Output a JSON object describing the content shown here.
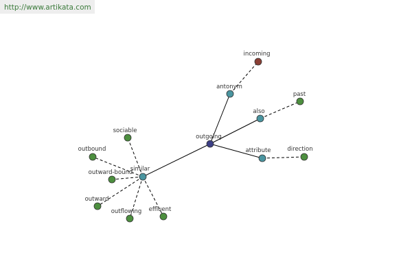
{
  "header": {
    "url": "http://www.artikata.com"
  },
  "nodes": [
    {
      "label": "outgoing"
    },
    {
      "label": "antonym"
    },
    {
      "label": "incoming"
    },
    {
      "label": "also"
    },
    {
      "label": "past"
    },
    {
      "label": "attribute"
    },
    {
      "label": "direction"
    },
    {
      "label": "similar"
    },
    {
      "label": "sociable"
    },
    {
      "label": "outbound"
    },
    {
      "label": "outward-bound"
    },
    {
      "label": "outward"
    },
    {
      "label": "outflowing"
    },
    {
      "label": "effluent"
    }
  ]
}
